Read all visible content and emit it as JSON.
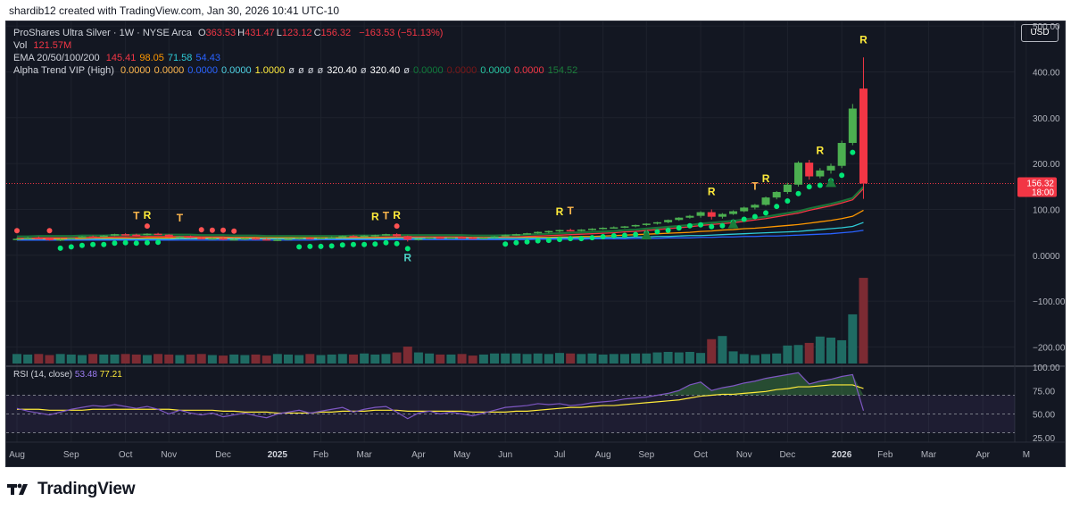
{
  "credit": "shardib12 created with TradingView.com, Jan 30, 2026 10:41 UTC-10",
  "legend": {
    "symbol": "ProShares Ultra Silver · 1W · NYSE Arca",
    "ohlc": [
      {
        "k": "O",
        "v": "363.53"
      },
      {
        "k": "H",
        "v": "431.47"
      },
      {
        "k": "L",
        "v": "123.12"
      },
      {
        "k": "C",
        "v": "156.32"
      }
    ],
    "change": "−163.53 (−51.13%)",
    "vol_label": "Vol",
    "vol_value": "121.57M",
    "ema_label": "EMA 20/50/100/200",
    "ema_values": [
      {
        "v": "145.41",
        "color": "#f23645"
      },
      {
        "v": "98.05",
        "color": "#ff9800"
      },
      {
        "v": "71.58",
        "color": "#2ecbd6"
      },
      {
        "v": "54.43",
        "color": "#2962ff"
      }
    ],
    "alpha_label": "Alpha Trend VIP (High)",
    "alpha_values": [
      {
        "v": "0.0000",
        "color": "#ffb74d"
      },
      {
        "v": "0.0000",
        "color": "#ffb74d"
      },
      {
        "v": "0.0000",
        "color": "#2962ff"
      },
      {
        "v": "0.0000",
        "color": "#4dd0e1"
      },
      {
        "v": "1.0000",
        "color": "#ffeb3b"
      },
      {
        "v": "ø",
        "color": "#d1d4dc"
      },
      {
        "v": "ø",
        "color": "#d1d4dc"
      },
      {
        "v": "ø",
        "color": "#d1d4dc"
      },
      {
        "v": "ø",
        "color": "#d1d4dc"
      },
      {
        "v": "320.40",
        "color": "#ffffff"
      },
      {
        "v": "ø",
        "color": "#d1d4dc"
      },
      {
        "v": "320.40",
        "color": "#ffffff"
      },
      {
        "v": "ø",
        "color": "#d1d4dc"
      },
      {
        "v": "0.0000",
        "color": "#0f7a3a"
      },
      {
        "v": "0.0000",
        "color": "#7a1717"
      },
      {
        "v": "0.0000",
        "color": "#26c6a2"
      },
      {
        "v": "0.0000",
        "color": "#f23645"
      },
      {
        "v": "154.52",
        "color": "#1b7d3b"
      }
    ]
  },
  "currency": "USD",
  "rsi": {
    "label": "RSI (14, close)",
    "value1": "53.48",
    "value2": "77.21"
  },
  "brand": "TradingView",
  "colors": {
    "up": "#4caf50",
    "down": "#f23645",
    "signal": "#00e676",
    "bg": "#131722"
  },
  "chart_data": {
    "type": "candlestick",
    "title": "ProShares Ultra Silver · 1W · NYSE Arca",
    "ylim": [
      -240,
      510
    ],
    "price_ticks": [
      "500.00",
      "400.00",
      "300.00",
      "200.00",
      "100.00",
      "0.0000",
      "−100.00",
      "−200.00"
    ],
    "price_tick_values": [
      500,
      400,
      300,
      200,
      100,
      0,
      -100,
      -200
    ],
    "last_price": "156.32",
    "countdown": "18:00",
    "x_labels": [
      "Aug",
      "Sep",
      "Oct",
      "Nov",
      "Dec",
      "2025",
      "Feb",
      "Mar",
      "Apr",
      "May",
      "Jun",
      "Jul",
      "Aug",
      "Sep",
      "Oct",
      "Nov",
      "Dec",
      "2026",
      "Feb",
      "Mar",
      "Apr",
      "M"
    ],
    "x_label_weeks": [
      0,
      5,
      10,
      14,
      19,
      24,
      28,
      32,
      37,
      41,
      45,
      50,
      54,
      58,
      63,
      67,
      71,
      76,
      80,
      84,
      89,
      93
    ],
    "bold_labels": [
      "2025",
      "2026"
    ],
    "candles": [
      [
        34,
        38,
        33,
        36
      ],
      [
        36,
        40,
        34,
        38
      ],
      [
        38,
        41,
        36,
        37
      ],
      [
        37,
        38,
        32,
        33
      ],
      [
        33,
        37,
        31,
        35
      ],
      [
        35,
        39,
        34,
        38
      ],
      [
        38,
        42,
        37,
        41
      ],
      [
        41,
        43,
        39,
        40
      ],
      [
        40,
        44,
        39,
        43
      ],
      [
        43,
        47,
        42,
        46
      ],
      [
        46,
        48,
        43,
        45
      ],
      [
        45,
        47,
        42,
        44
      ],
      [
        44,
        48,
        43,
        47
      ],
      [
        47,
        49,
        44,
        45
      ],
      [
        45,
        46,
        38,
        39
      ],
      [
        39,
        42,
        37,
        41
      ],
      [
        41,
        43,
        37,
        38
      ],
      [
        38,
        40,
        35,
        36
      ],
      [
        36,
        39,
        34,
        37
      ],
      [
        37,
        39,
        33,
        34
      ],
      [
        34,
        37,
        32,
        35
      ],
      [
        35,
        38,
        33,
        37
      ],
      [
        37,
        38,
        34,
        35
      ],
      [
        35,
        37,
        32,
        33
      ],
      [
        33,
        36,
        31,
        34
      ],
      [
        34,
        37,
        33,
        36
      ],
      [
        36,
        39,
        34,
        38
      ],
      [
        38,
        40,
        35,
        36
      ],
      [
        36,
        39,
        35,
        38
      ],
      [
        38,
        41,
        36,
        39
      ],
      [
        39,
        43,
        38,
        42
      ],
      [
        42,
        44,
        39,
        40
      ],
      [
        40,
        44,
        39,
        43
      ],
      [
        43,
        45,
        40,
        44
      ],
      [
        44,
        47,
        43,
        46
      ],
      [
        46,
        48,
        41,
        42
      ],
      [
        42,
        43,
        30,
        34
      ],
      [
        34,
        37,
        32,
        36
      ],
      [
        36,
        40,
        35,
        39
      ],
      [
        39,
        41,
        36,
        38
      ],
      [
        38,
        40,
        36,
        39
      ],
      [
        39,
        41,
        37,
        38
      ],
      [
        38,
        40,
        36,
        37
      ],
      [
        37,
        39,
        35,
        38
      ],
      [
        38,
        42,
        37,
        41
      ],
      [
        41,
        45,
        40,
        44
      ],
      [
        44,
        47,
        43,
        46
      ],
      [
        46,
        49,
        45,
        48
      ],
      [
        48,
        52,
        47,
        51
      ],
      [
        51,
        54,
        48,
        53
      ],
      [
        53,
        56,
        50,
        55
      ],
      [
        55,
        58,
        52,
        54
      ],
      [
        54,
        57,
        52,
        56
      ],
      [
        56,
        59,
        54,
        58
      ],
      [
        58,
        61,
        56,
        60
      ],
      [
        60,
        63,
        58,
        61
      ],
      [
        61,
        64,
        59,
        63
      ],
      [
        63,
        67,
        61,
        66
      ],
      [
        66,
        70,
        64,
        69
      ],
      [
        69,
        73,
        67,
        72
      ],
      [
        72,
        78,
        70,
        77
      ],
      [
        77,
        83,
        75,
        82
      ],
      [
        82,
        88,
        80,
        86
      ],
      [
        86,
        96,
        82,
        94
      ],
      [
        94,
        100,
        78,
        84
      ],
      [
        84,
        92,
        80,
        90
      ],
      [
        90,
        98,
        88,
        96
      ],
      [
        96,
        106,
        94,
        104
      ],
      [
        104,
        112,
        100,
        110
      ],
      [
        110,
        128,
        108,
        126
      ],
      [
        126,
        140,
        122,
        138
      ],
      [
        138,
        158,
        134,
        154
      ],
      [
        154,
        205,
        150,
        202
      ],
      [
        202,
        208,
        165,
        172
      ],
      [
        172,
        190,
        168,
        185
      ],
      [
        185,
        200,
        178,
        195
      ],
      [
        195,
        250,
        190,
        245
      ],
      [
        245,
        330,
        240,
        320
      ],
      [
        363.53,
        431.47,
        123.12,
        156.32
      ]
    ],
    "ema_series": [
      {
        "name": "EMA 20",
        "color": "#f23645",
        "values": [
          37,
          37,
          38,
          38,
          38,
          38,
          39,
          39,
          39,
          40,
          40,
          41,
          41,
          41,
          41,
          41,
          41,
          40,
          40,
          40,
          39,
          39,
          39,
          38,
          38,
          38,
          38,
          38,
          38,
          38,
          38,
          39,
          39,
          39,
          40,
          40,
          40,
          40,
          40,
          40,
          40,
          40,
          39,
          39,
          39,
          40,
          40,
          41,
          42,
          43,
          44,
          45,
          46,
          47,
          48,
          49,
          51,
          52,
          54,
          56,
          58,
          60,
          62,
          65,
          67,
          69,
          71,
          74,
          77,
          80,
          84,
          88,
          92,
          98,
          103,
          108,
          114,
          121,
          145.41
        ]
      },
      {
        "name": "EMA 50",
        "color": "#ff9800",
        "values": [
          35,
          35,
          35,
          36,
          36,
          36,
          36,
          36,
          37,
          37,
          37,
          37,
          38,
          38,
          38,
          38,
          38,
          38,
          38,
          38,
          38,
          38,
          38,
          38,
          38,
          38,
          38,
          38,
          38,
          38,
          38,
          38,
          38,
          38,
          38,
          38,
          38,
          38,
          38,
          38,
          38,
          38,
          38,
          38,
          38,
          38,
          38,
          39,
          39,
          39,
          40,
          40,
          41,
          41,
          42,
          43,
          44,
          45,
          46,
          47,
          48,
          49,
          50,
          52,
          53,
          55,
          56,
          58,
          59,
          61,
          63,
          65,
          67,
          70,
          73,
          76,
          80,
          85,
          98.05
        ]
      },
      {
        "name": "EMA 100",
        "color": "#2ecbd6",
        "values": [
          34,
          34,
          34,
          34,
          34,
          34,
          34,
          35,
          35,
          35,
          35,
          35,
          35,
          35,
          35,
          36,
          36,
          36,
          36,
          36,
          36,
          36,
          36,
          36,
          36,
          36,
          36,
          36,
          36,
          36,
          36,
          36,
          36,
          36,
          36,
          37,
          37,
          37,
          37,
          37,
          37,
          37,
          37,
          37,
          37,
          37,
          37,
          37,
          37,
          37,
          38,
          38,
          38,
          38,
          39,
          39,
          39,
          40,
          40,
          41,
          41,
          42,
          43,
          43,
          44,
          45,
          46,
          47,
          48,
          49,
          50,
          51,
          52,
          54,
          56,
          58,
          60,
          63,
          71.58
        ]
      },
      {
        "name": "EMA 200",
        "color": "#2962ff",
        "values": [
          33,
          33,
          33,
          33,
          33,
          33,
          33,
          33,
          33,
          33,
          33,
          33,
          33,
          33,
          33,
          33,
          33,
          33,
          33,
          33,
          33,
          33,
          33,
          33,
          33,
          33,
          33,
          33,
          34,
          34,
          34,
          34,
          34,
          34,
          34,
          34,
          34,
          34,
          34,
          34,
          34,
          34,
          34,
          34,
          34,
          34,
          34,
          34,
          35,
          35,
          35,
          35,
          35,
          36,
          36,
          36,
          36,
          37,
          37,
          37,
          38,
          38,
          38,
          39,
          39,
          40,
          40,
          41,
          41,
          42,
          42,
          43,
          44,
          45,
          46,
          47,
          49,
          51,
          54.43
        ]
      }
    ],
    "volume": {
      "values": [
        18,
        17,
        18,
        16,
        18,
        17,
        16,
        18,
        17,
        17,
        18,
        17,
        16,
        18,
        17,
        16,
        17,
        18,
        16,
        15,
        17,
        16,
        17,
        15,
        18,
        17,
        16,
        18,
        16,
        17,
        18,
        17,
        19,
        17,
        18,
        21,
        32,
        21,
        19,
        17,
        17,
        18,
        15,
        17,
        19,
        19,
        19,
        18,
        19,
        18,
        20,
        19,
        18,
        19,
        17,
        18,
        18,
        19,
        19,
        21,
        22,
        21,
        22,
        20,
        46,
        52,
        23,
        18,
        16,
        18,
        19,
        34,
        35,
        39,
        51,
        49,
        44,
        93,
        162
      ],
      "colors_up_down": "close>=open → teal, else maroon"
    },
    "signals": {
      "green_dots": [
        4,
        5,
        6,
        7,
        8,
        9,
        10,
        11,
        12,
        13,
        26,
        27,
        28,
        29,
        30,
        31,
        32,
        33,
        34,
        35,
        36,
        45,
        46,
        47,
        48,
        49,
        50,
        51,
        52,
        53,
        54,
        55,
        56,
        57,
        58,
        59,
        60,
        61,
        62,
        63,
        64,
        65,
        66,
        67,
        68,
        69,
        70,
        71,
        72,
        73,
        74,
        75,
        76,
        77
      ],
      "red_dots": [
        0,
        3,
        12,
        17,
        18,
        19,
        20,
        35
      ],
      "triangles": [
        58,
        66,
        75
      ],
      "labels": [
        {
          "w": 11,
          "t": "T",
          "c": "#ffb74d",
          "pos": "above"
        },
        {
          "w": 12,
          "t": "R",
          "c": "#ffeb3b",
          "pos": "above"
        },
        {
          "w": 15,
          "t": "T",
          "c": "#ffb74d",
          "pos": "above"
        },
        {
          "w": 33,
          "t": "R",
          "c": "#ffeb3b",
          "pos": "above"
        },
        {
          "w": 34,
          "t": "T",
          "c": "#ffb74d",
          "pos": "above"
        },
        {
          "w": 35,
          "t": "R",
          "c": "#ffeb3b",
          "pos": "above"
        },
        {
          "w": 36,
          "t": "R",
          "c": "#4dd0c4",
          "pos": "below"
        },
        {
          "w": 50,
          "t": "R",
          "c": "#ffeb3b",
          "pos": "above"
        },
        {
          "w": 51,
          "t": "T",
          "c": "#ffb74d",
          "pos": "above"
        },
        {
          "w": 64,
          "t": "R",
          "c": "#ffeb3b",
          "pos": "above"
        },
        {
          "w": 68,
          "t": "T",
          "c": "#ffb74d",
          "pos": "above"
        },
        {
          "w": 69,
          "t": "R",
          "c": "#ffeb3b",
          "pos": "above"
        },
        {
          "w": 74,
          "t": "R",
          "c": "#ffeb3b",
          "pos": "above"
        },
        {
          "w": 78,
          "t": "R",
          "c": "#ffeb3b",
          "pos": "above"
        }
      ]
    },
    "rsi": {
      "ylim": [
        20,
        100
      ],
      "ticks": [
        "100.00",
        "75.00",
        "50.00",
        "25.00"
      ],
      "tick_values": [
        100,
        75,
        50,
        25
      ],
      "bands": [
        30,
        50,
        70
      ],
      "rsi_values": [
        56,
        53,
        51,
        49,
        52,
        55,
        57,
        59,
        58,
        60,
        58,
        56,
        58,
        55,
        50,
        54,
        51,
        49,
        51,
        47,
        49,
        51,
        48,
        46,
        50,
        52,
        54,
        51,
        53,
        55,
        57,
        52,
        55,
        57,
        58,
        52,
        45,
        51,
        53,
        50,
        52,
        50,
        48,
        51,
        54,
        57,
        58,
        59,
        61,
        60,
        61,
        59,
        60,
        62,
        63,
        64,
        66,
        67,
        68,
        70,
        72,
        75,
        81,
        84,
        75,
        78,
        80,
        83,
        85,
        88,
        90,
        92,
        94,
        82,
        85,
        87,
        90,
        92,
        53.48
      ],
      "ma_values": [
        55,
        55,
        55,
        54,
        54,
        54,
        54,
        55,
        55,
        55,
        55,
        55,
        55,
        55,
        55,
        54,
        54,
        54,
        54,
        53,
        53,
        52,
        52,
        52,
        51,
        51,
        51,
        51,
        52,
        52,
        53,
        53,
        53,
        54,
        54,
        54,
        53,
        53,
        53,
        53,
        53,
        53,
        52,
        52,
        52,
        52,
        53,
        53,
        54,
        55,
        56,
        57,
        57,
        58,
        59,
        59,
        60,
        61,
        62,
        63,
        64,
        65,
        67,
        69,
        70,
        71,
        71,
        72,
        73,
        74,
        76,
        77,
        79,
        79,
        80,
        81,
        81,
        81,
        77.21
      ]
    }
  }
}
